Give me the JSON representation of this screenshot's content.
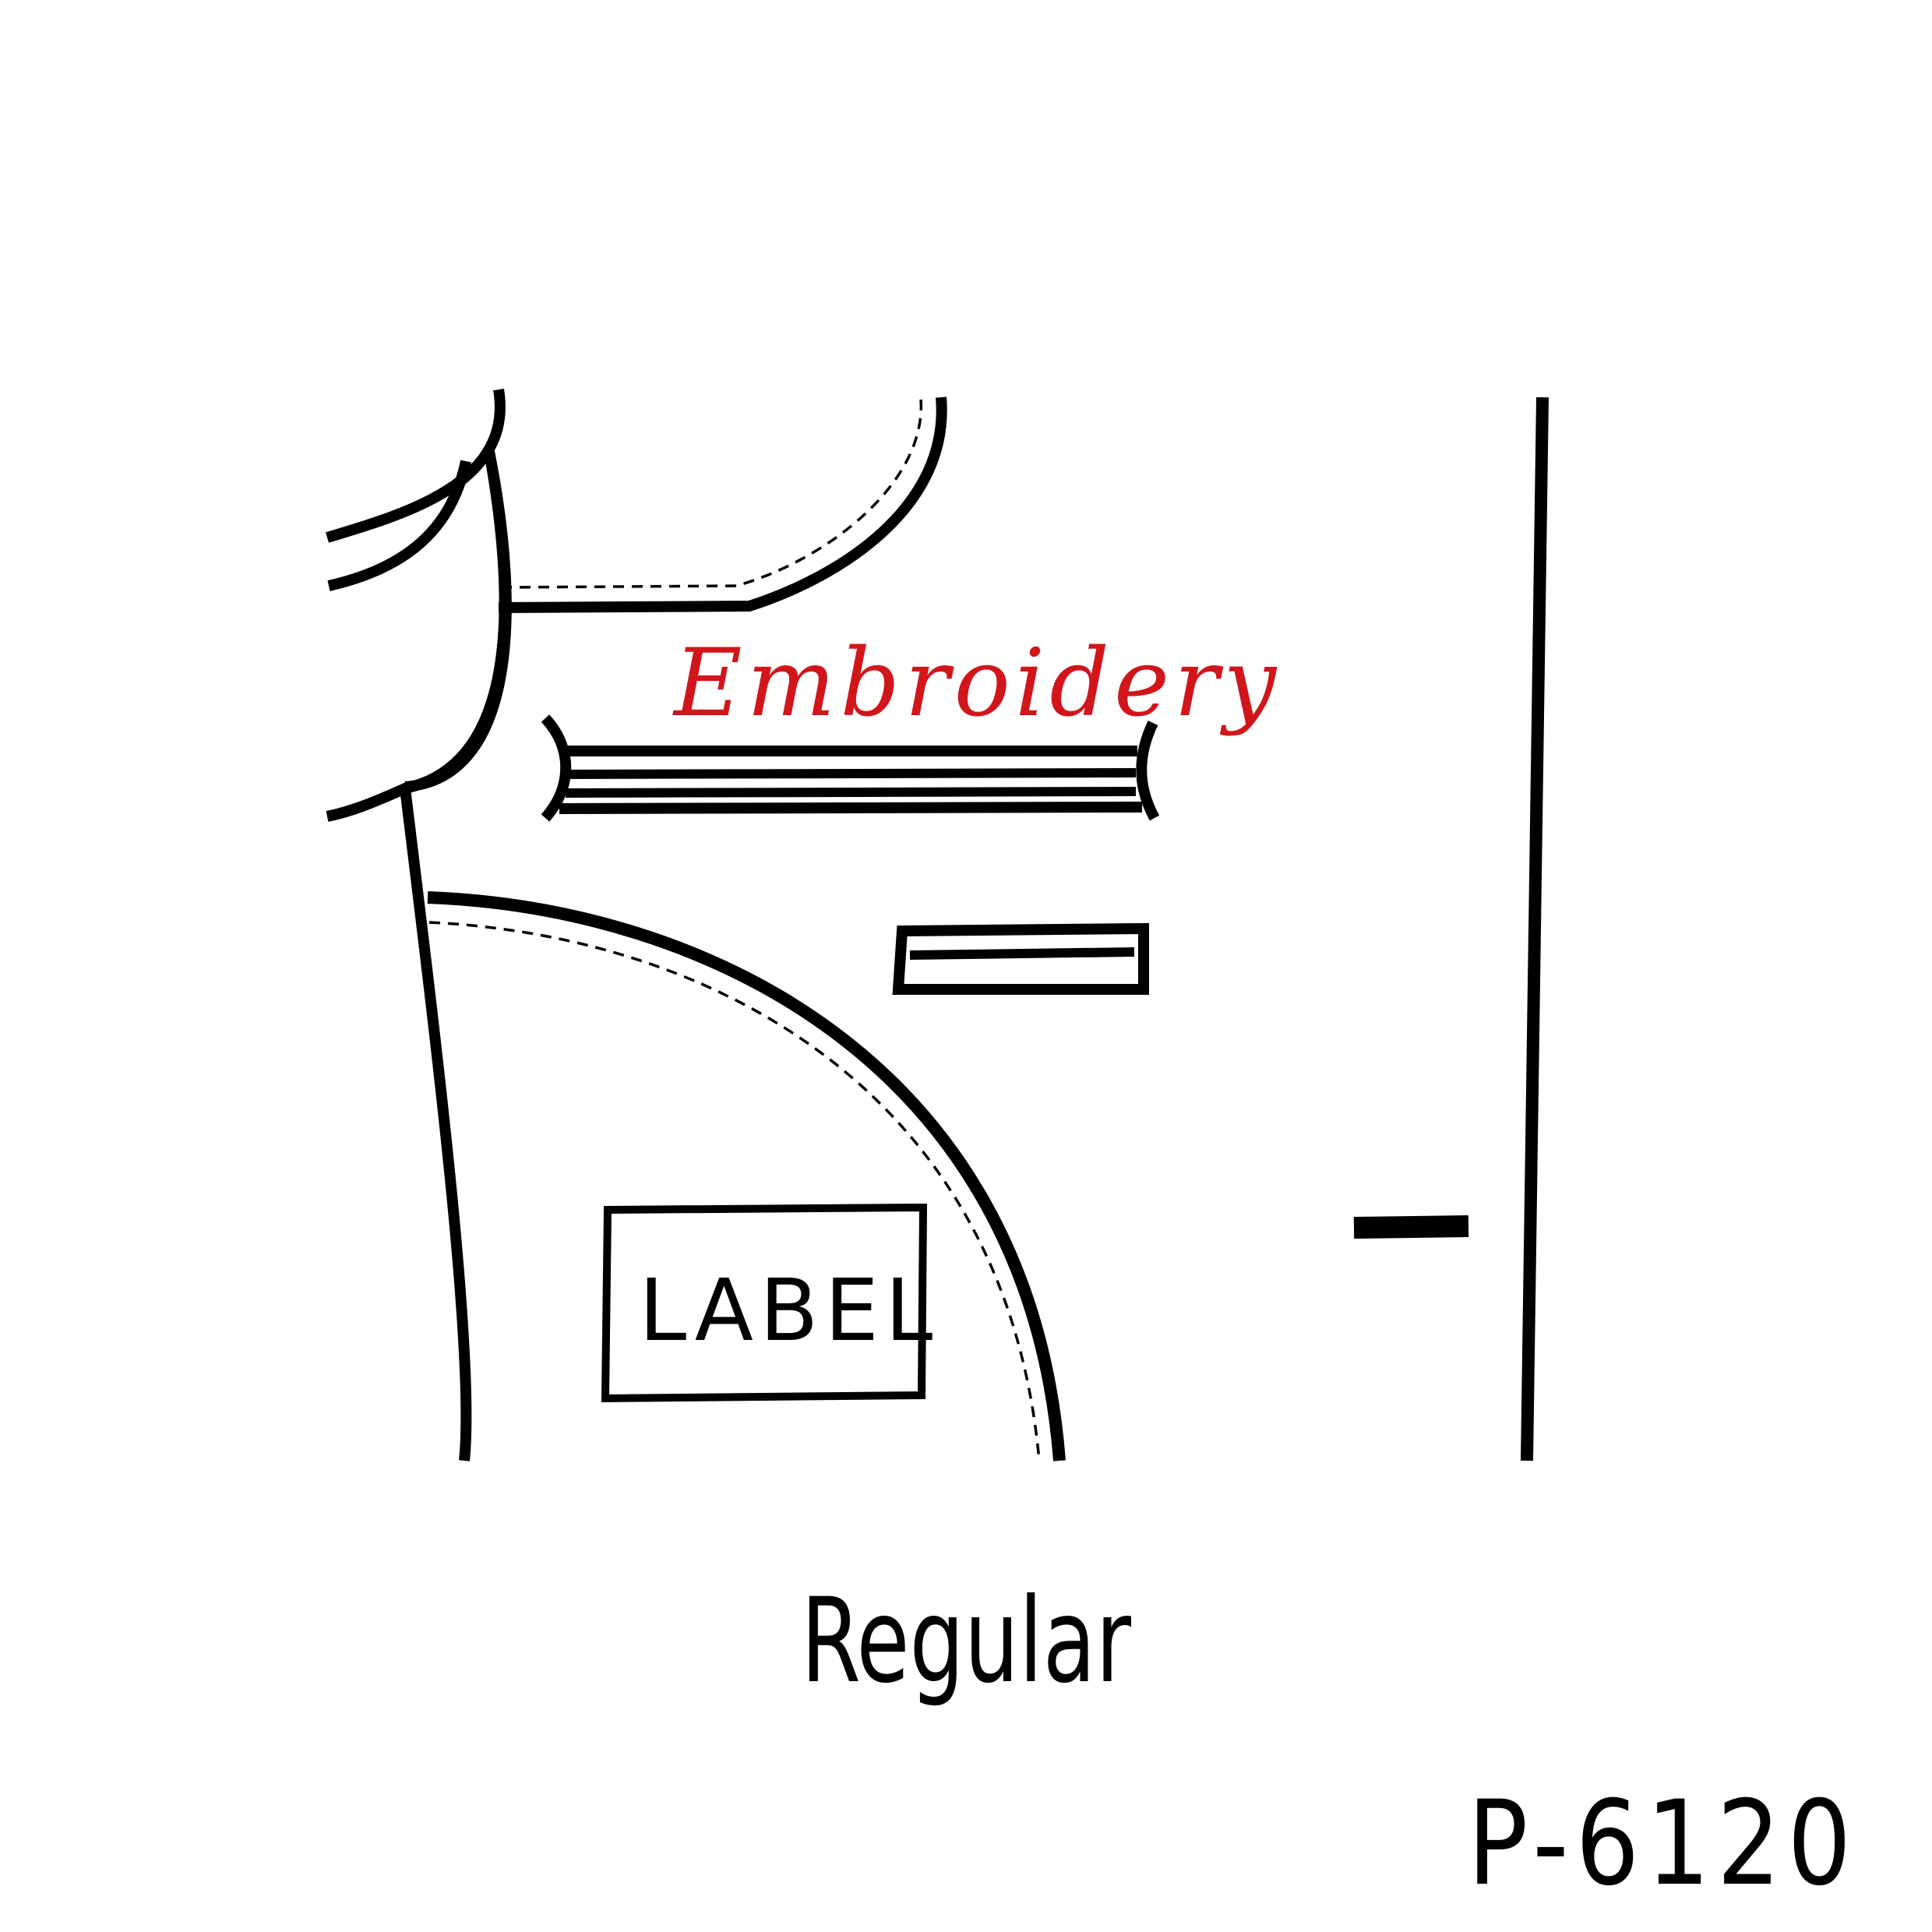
{
  "diagram": {
    "embroidery_label": "Embroidery",
    "label_tag": "LABEL",
    "style_name": "Regular",
    "product_code": "P-6120",
    "embroidery_color": "#d0161b",
    "line_color": "#000000"
  }
}
